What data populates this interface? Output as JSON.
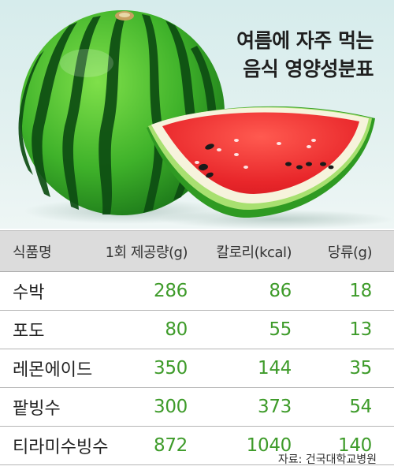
{
  "headline": {
    "line1": "여름에 자주 먹는",
    "line2": "음식 영양성분표"
  },
  "table": {
    "headers": {
      "name": "식품명",
      "serving": "1회 제공량(g)",
      "calories": "칼로리(kcal)",
      "sugar": "당류(g)"
    },
    "rows": [
      {
        "name": "수박",
        "serving": "286",
        "calories": "86",
        "sugar": "18"
      },
      {
        "name": "포도",
        "serving": "80",
        "calories": "55",
        "sugar": "13"
      },
      {
        "name": "레몬에이드",
        "serving": "350",
        "calories": "144",
        "sugar": "35"
      },
      {
        "name": "팥빙수",
        "serving": "300",
        "calories": "373",
        "sugar": "54"
      },
      {
        "name": "티라미수빙수",
        "serving": "872",
        "calories": "1040",
        "sugar": "140"
      }
    ]
  },
  "source": "자료: 건국대학교병원",
  "colors": {
    "value_green": "#3e9b2a",
    "header_bg": "#dcdcdc",
    "hero_bg": "#d6ecec"
  }
}
